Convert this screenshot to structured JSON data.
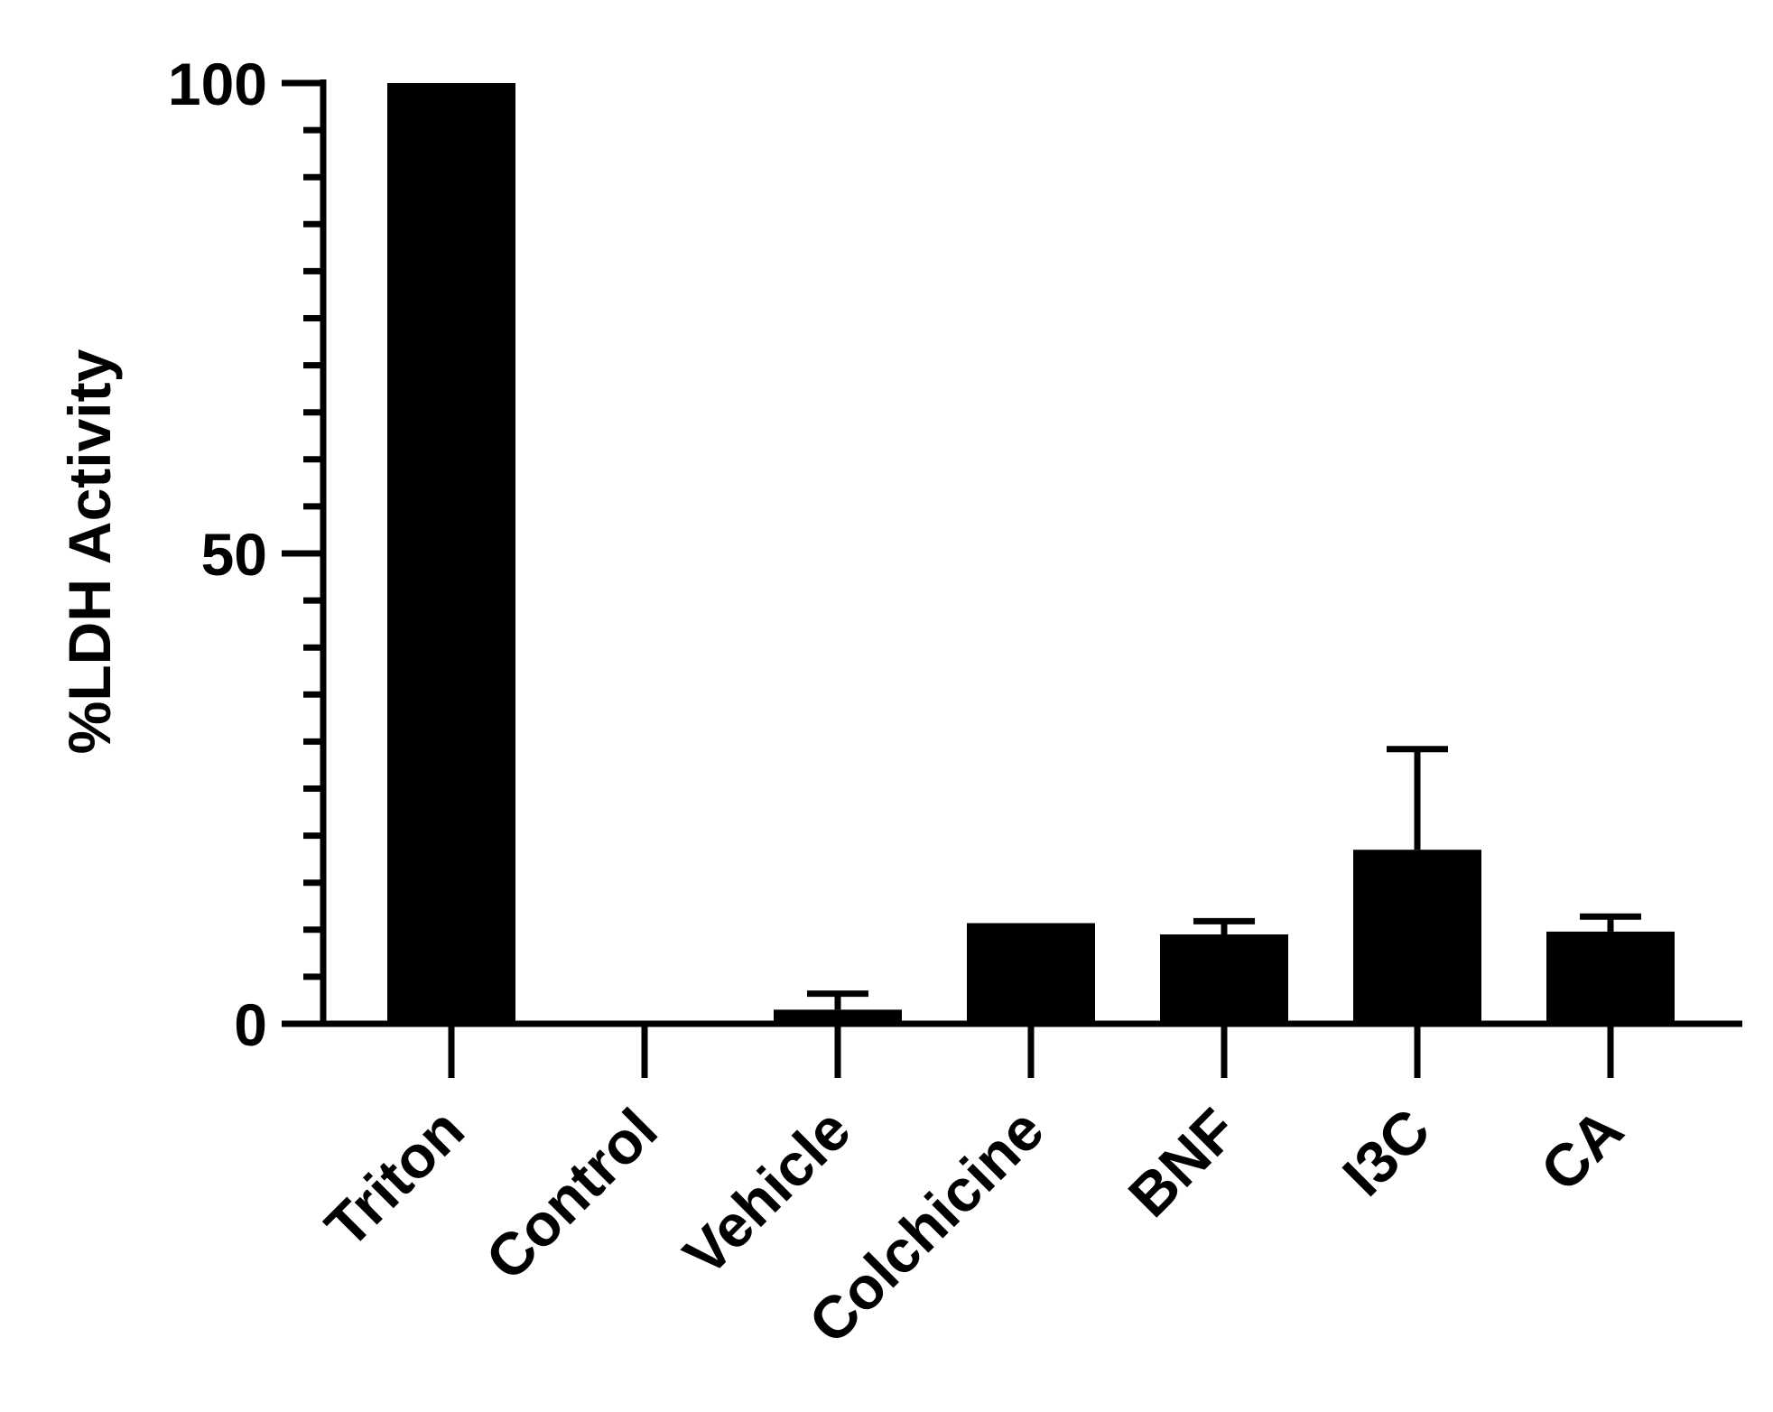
{
  "chart_data": {
    "type": "bar",
    "title": "",
    "xlabel": "",
    "ylabel": "%LDH Activity",
    "categories": [
      "Triton",
      "Control",
      "Vehicle",
      "Colchicine",
      "BNF",
      "I3C",
      "CA"
    ],
    "values": [
      100,
      0,
      1.5,
      10.7,
      9.5,
      18.5,
      9.8
    ],
    "error_upper": [
      100,
      0,
      3.2,
      10.7,
      10.9,
      29.2,
      11.4
    ],
    "ylim": [
      0,
      100
    ],
    "yticks": [
      "0",
      "50",
      "100"
    ],
    "ytick_values": [
      0,
      50,
      100
    ],
    "minor_tick_step": 5,
    "grid": false,
    "bar_color": "#000000",
    "axis_color": "#000000"
  }
}
